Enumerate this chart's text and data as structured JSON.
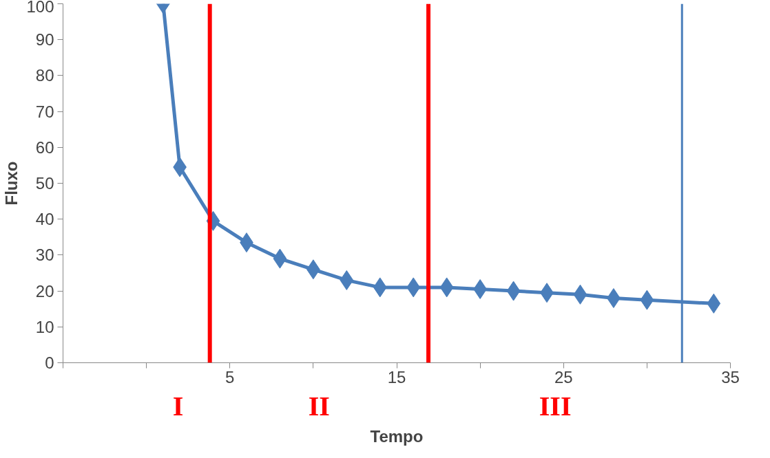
{
  "chart_data": {
    "type": "line",
    "xlabel": "Tempo",
    "ylabel": "Fluxo",
    "x": [
      1,
      2,
      4,
      6,
      8,
      10,
      12,
      14,
      16,
      18,
      20,
      22,
      24,
      26,
      28,
      30,
      34
    ],
    "series": [
      {
        "color": "#4a7ebb",
        "values": [
          100,
          54.5,
          39.5,
          33.5,
          29,
          26,
          23,
          21,
          21,
          21,
          20.5,
          20,
          19.5,
          19,
          18,
          17.5,
          16.5
        ]
      }
    ],
    "xlim": [
      -5,
      35
    ],
    "xticks": [
      {
        "value": -5,
        "label": null
      },
      {
        "value": 0,
        "label": null
      },
      5,
      {
        "value": 10,
        "label": null
      },
      15,
      {
        "value": 20,
        "label": null
      },
      25,
      {
        "value": 30,
        "label": null
      },
      35
    ],
    "ylim": [
      0,
      100
    ],
    "yticks": [
      0,
      10,
      20,
      30,
      40,
      50,
      60,
      70,
      80,
      90,
      100
    ],
    "grid": false,
    "marker": "diamond",
    "line_style": "solid",
    "ref_lines": [
      {
        "axis": "x",
        "value": 3.8,
        "color": "#ff0000"
      },
      {
        "axis": "x",
        "value": 16.9,
        "color": "#ff0000"
      },
      {
        "axis": "x",
        "value": 32.1,
        "color": "#4a7ebb"
      }
    ],
    "annotations": [
      "I",
      "II",
      "III"
    ]
  }
}
